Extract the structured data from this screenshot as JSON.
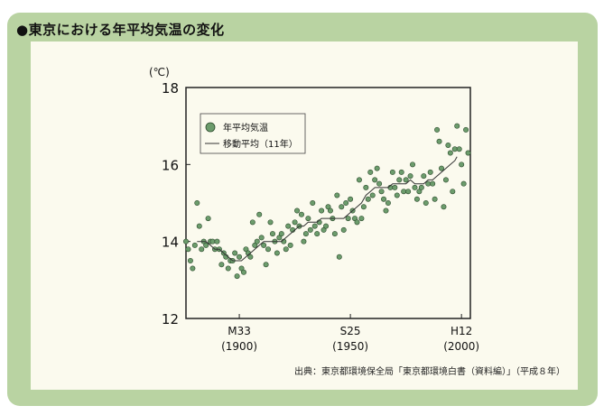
{
  "header": {
    "title": "●東京における年平均気温の変化"
  },
  "source": "出典：東京都環境保全局「東京都環境白書（資料編）」（平成８年）",
  "chart_data": {
    "type": "scatter",
    "title": "",
    "ylabel": "(℃)",
    "xlabel": "",
    "xlim": [
      1876,
      2004
    ],
    "ylim": [
      12,
      18
    ],
    "yticks": [
      12,
      14,
      16,
      18
    ],
    "xticks": [
      {
        "x": 1900,
        "line1": "M33",
        "line2": "(1900)"
      },
      {
        "x": 1950,
        "line1": "S25",
        "line2": "(1950)"
      },
      {
        "x": 2000,
        "line1": "H12",
        "line2": "(2000)"
      }
    ],
    "legend": {
      "position": "top-left",
      "dots_label": "年平均気温",
      "line_label": "移動平均（11年）"
    },
    "colors": {
      "dot_fill": "#6c9c6c",
      "dot_stroke": "#2c4a2c",
      "line": "#333333",
      "frame": "#222222"
    },
    "series": [
      {
        "name": "年平均気温",
        "type": "scatter",
        "points": [
          [
            1876,
            14.0
          ],
          [
            1877,
            13.8
          ],
          [
            1878,
            13.5
          ],
          [
            1879,
            13.3
          ],
          [
            1880,
            13.9
          ],
          [
            1881,
            15.0
          ],
          [
            1882,
            14.4
          ],
          [
            1883,
            13.8
          ],
          [
            1884,
            14.0
          ],
          [
            1885,
            13.9
          ],
          [
            1886,
            14.6
          ],
          [
            1887,
            14.0
          ],
          [
            1888,
            14.0
          ],
          [
            1889,
            13.8
          ],
          [
            1890,
            14.0
          ],
          [
            1891,
            13.8
          ],
          [
            1892,
            13.4
          ],
          [
            1893,
            13.7
          ],
          [
            1894,
            13.6
          ],
          [
            1895,
            13.3
          ],
          [
            1896,
            13.5
          ],
          [
            1897,
            13.5
          ],
          [
            1898,
            13.7
          ],
          [
            1899,
            13.1
          ],
          [
            1900,
            13.6
          ],
          [
            1901,
            13.3
          ],
          [
            1902,
            13.2
          ],
          [
            1903,
            13.8
          ],
          [
            1904,
            13.7
          ],
          [
            1905,
            13.6
          ],
          [
            1906,
            14.5
          ],
          [
            1907,
            13.9
          ],
          [
            1908,
            14.0
          ],
          [
            1909,
            14.7
          ],
          [
            1910,
            14.1
          ],
          [
            1911,
            13.9
          ],
          [
            1912,
            13.4
          ],
          [
            1913,
            13.8
          ],
          [
            1914,
            14.5
          ],
          [
            1915,
            14.2
          ],
          [
            1916,
            14.0
          ],
          [
            1917,
            13.7
          ],
          [
            1918,
            14.1
          ],
          [
            1919,
            14.2
          ],
          [
            1920,
            14.0
          ],
          [
            1921,
            13.8
          ],
          [
            1922,
            14.4
          ],
          [
            1923,
            13.9
          ],
          [
            1924,
            14.3
          ],
          [
            1925,
            14.5
          ],
          [
            1926,
            14.8
          ],
          [
            1927,
            14.4
          ],
          [
            1928,
            14.7
          ],
          [
            1929,
            14.0
          ],
          [
            1930,
            14.2
          ],
          [
            1931,
            14.6
          ],
          [
            1932,
            14.3
          ],
          [
            1933,
            15.0
          ],
          [
            1934,
            14.4
          ],
          [
            1935,
            14.2
          ],
          [
            1936,
            14.5
          ],
          [
            1937,
            14.8
          ],
          [
            1938,
            14.3
          ],
          [
            1939,
            14.4
          ],
          [
            1940,
            14.9
          ],
          [
            1941,
            14.8
          ],
          [
            1942,
            14.6
          ],
          [
            1943,
            14.2
          ],
          [
            1944,
            15.2
          ],
          [
            1945,
            13.6
          ],
          [
            1946,
            14.9
          ],
          [
            1947,
            14.3
          ],
          [
            1948,
            15.0
          ],
          [
            1949,
            14.6
          ],
          [
            1950,
            15.1
          ],
          [
            1951,
            14.8
          ],
          [
            1952,
            14.6
          ],
          [
            1953,
            14.5
          ],
          [
            1954,
            15.6
          ],
          [
            1955,
            14.6
          ],
          [
            1956,
            14.9
          ],
          [
            1957,
            15.4
          ],
          [
            1958,
            15.1
          ],
          [
            1959,
            15.8
          ],
          [
            1960,
            15.2
          ],
          [
            1961,
            15.6
          ],
          [
            1962,
            15.9
          ],
          [
            1963,
            15.5
          ],
          [
            1964,
            15.3
          ],
          [
            1965,
            15.1
          ],
          [
            1966,
            14.8
          ],
          [
            1967,
            15.0
          ],
          [
            1968,
            15.4
          ],
          [
            1969,
            15.8
          ],
          [
            1970,
            15.4
          ],
          [
            1971,
            15.2
          ],
          [
            1972,
            15.6
          ],
          [
            1973,
            15.8
          ],
          [
            1974,
            15.3
          ],
          [
            1975,
            15.6
          ],
          [
            1976,
            15.3
          ],
          [
            1977,
            15.7
          ],
          [
            1978,
            16.0
          ],
          [
            1979,
            15.4
          ],
          [
            1980,
            15.1
          ],
          [
            1981,
            15.3
          ],
          [
            1982,
            15.4
          ],
          [
            1983,
            15.7
          ],
          [
            1984,
            15.0
          ],
          [
            1985,
            15.5
          ],
          [
            1986,
            15.8
          ],
          [
            1987,
            15.5
          ],
          [
            1988,
            15.1
          ],
          [
            1989,
            16.9
          ],
          [
            1990,
            16.6
          ],
          [
            1991,
            15.9
          ],
          [
            1992,
            14.9
          ],
          [
            1993,
            15.6
          ],
          [
            1994,
            16.5
          ],
          [
            1995,
            16.3
          ],
          [
            1996,
            15.3
          ],
          [
            1997,
            16.4
          ],
          [
            1998,
            17.0
          ],
          [
            1999,
            16.4
          ],
          [
            2000,
            16.0
          ],
          [
            2001,
            15.5
          ],
          [
            2002,
            16.9
          ],
          [
            2003,
            16.3
          ]
        ]
      },
      {
        "name": "移動平均（11年）",
        "type": "line",
        "points": [
          [
            1881,
            14.0
          ],
          [
            1883,
            14.0
          ],
          [
            1885,
            14.0
          ],
          [
            1887,
            13.9
          ],
          [
            1889,
            13.8
          ],
          [
            1891,
            13.8
          ],
          [
            1893,
            13.7
          ],
          [
            1895,
            13.6
          ],
          [
            1897,
            13.5
          ],
          [
            1899,
            13.5
          ],
          [
            1901,
            13.5
          ],
          [
            1903,
            13.6
          ],
          [
            1905,
            13.7
          ],
          [
            1907,
            13.8
          ],
          [
            1909,
            13.9
          ],
          [
            1911,
            14.0
          ],
          [
            1913,
            14.0
          ],
          [
            1915,
            14.0
          ],
          [
            1917,
            14.0
          ],
          [
            1919,
            14.0
          ],
          [
            1921,
            14.1
          ],
          [
            1923,
            14.2
          ],
          [
            1925,
            14.3
          ],
          [
            1927,
            14.4
          ],
          [
            1929,
            14.4
          ],
          [
            1931,
            14.5
          ],
          [
            1933,
            14.5
          ],
          [
            1935,
            14.5
          ],
          [
            1937,
            14.6
          ],
          [
            1939,
            14.6
          ],
          [
            1941,
            14.6
          ],
          [
            1943,
            14.6
          ],
          [
            1945,
            14.6
          ],
          [
            1947,
            14.6
          ],
          [
            1949,
            14.7
          ],
          [
            1951,
            14.8
          ],
          [
            1953,
            14.9
          ],
          [
            1955,
            15.0
          ],
          [
            1957,
            15.2
          ],
          [
            1959,
            15.3
          ],
          [
            1961,
            15.4
          ],
          [
            1963,
            15.4
          ],
          [
            1965,
            15.4
          ],
          [
            1967,
            15.4
          ],
          [
            1969,
            15.5
          ],
          [
            1971,
            15.5
          ],
          [
            1973,
            15.5
          ],
          [
            1975,
            15.5
          ],
          [
            1977,
            15.6
          ],
          [
            1979,
            15.5
          ],
          [
            1981,
            15.5
          ],
          [
            1983,
            15.5
          ],
          [
            1985,
            15.6
          ],
          [
            1987,
            15.6
          ],
          [
            1989,
            15.7
          ],
          [
            1991,
            15.8
          ],
          [
            1993,
            15.9
          ],
          [
            1995,
            16.0
          ],
          [
            1997,
            16.1
          ],
          [
            1998,
            16.2
          ]
        ]
      }
    ]
  }
}
